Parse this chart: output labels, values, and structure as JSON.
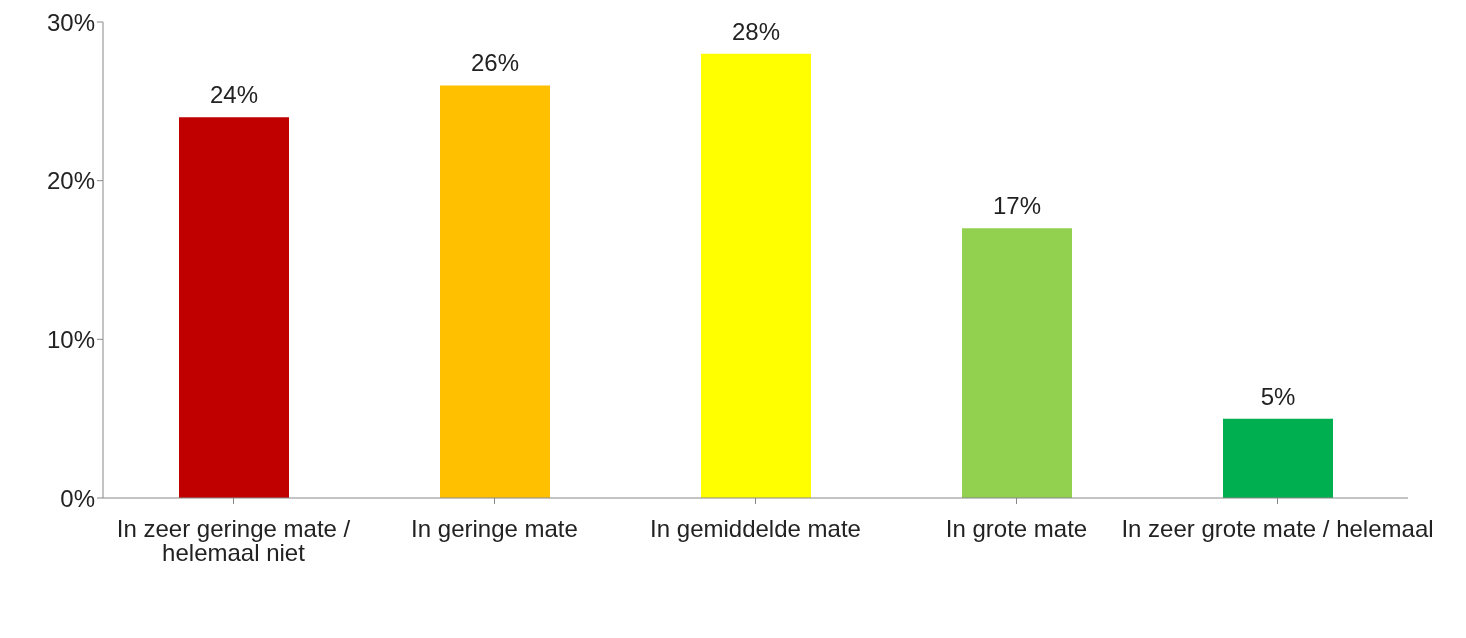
{
  "chart_data": {
    "type": "bar",
    "categories": [
      "In zeer geringe mate / helemaal niet",
      "In geringe mate",
      "In gemiddelde mate",
      "In grote mate",
      "In zeer grote mate / helemaal"
    ],
    "values": [
      24,
      26,
      28,
      17,
      5
    ],
    "colors": [
      "#c00000",
      "#ffc000",
      "#ffff00",
      "#92d050",
      "#00b050"
    ],
    "value_labels": [
      "24%",
      "26%",
      "28%",
      "17%",
      "5%"
    ],
    "ylim": [
      0,
      30
    ],
    "yticks": [
      {
        "value": 0,
        "label": "0%"
      },
      {
        "value": 10,
        "label": "10%"
      },
      {
        "value": 20,
        "label": "20%"
      },
      {
        "value": 30,
        "label": "30%"
      }
    ],
    "grid": false,
    "legend": false
  }
}
